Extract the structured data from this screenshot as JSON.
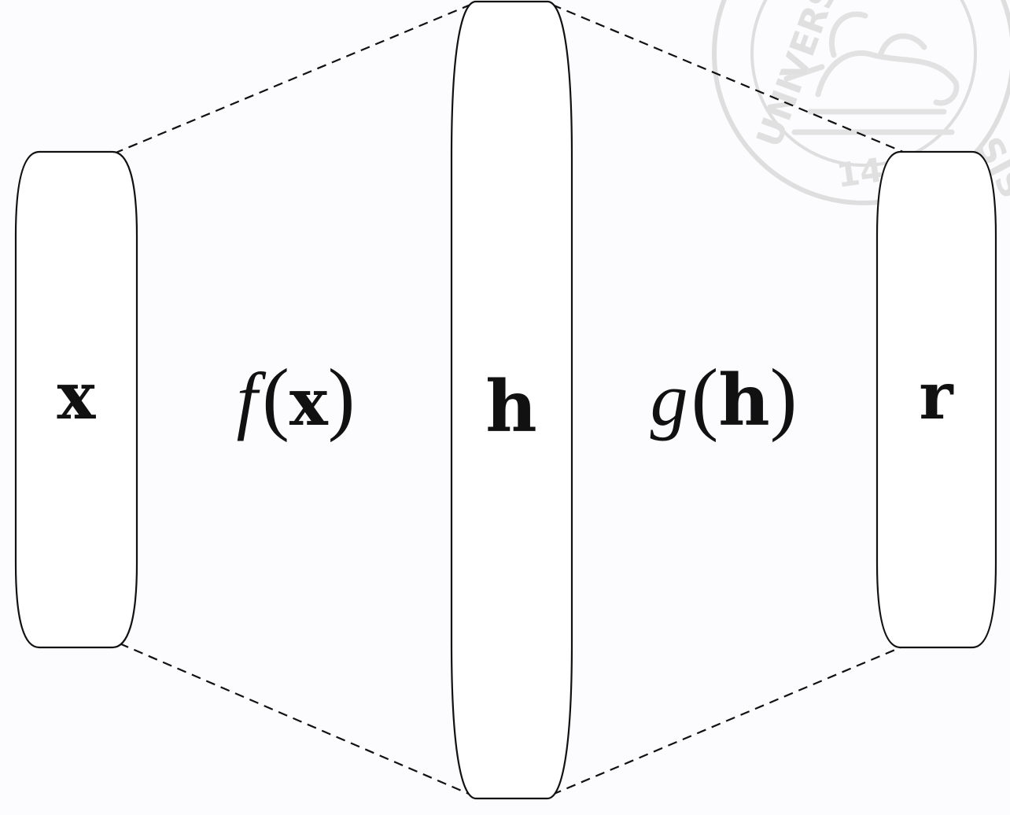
{
  "diagram": {
    "nodes": [
      {
        "id": "input",
        "label": "x"
      },
      {
        "id": "code",
        "label": "h"
      },
      {
        "id": "reconstruction",
        "label": "r"
      }
    ],
    "functions": [
      {
        "id": "encoder",
        "name": "f",
        "open": "(",
        "arg": "x",
        "close": ")"
      },
      {
        "id": "decoder",
        "name": "g",
        "open": "(",
        "arg": "h",
        "close": ")"
      }
    ],
    "edges": [
      {
        "from": "input",
        "to": "code",
        "style": "dashed"
      },
      {
        "from": "code",
        "to": "reconstruction",
        "style": "dashed"
      }
    ]
  },
  "watermark": {
    "kind": "university-seal",
    "text_left": "UNIVERS",
    "text_right": "SIS",
    "year_fragment": "14"
  },
  "colors": {
    "background": "#fcfcfe",
    "stroke": "#111111",
    "node_fill": "#ffffff",
    "watermark": "#dedede"
  }
}
